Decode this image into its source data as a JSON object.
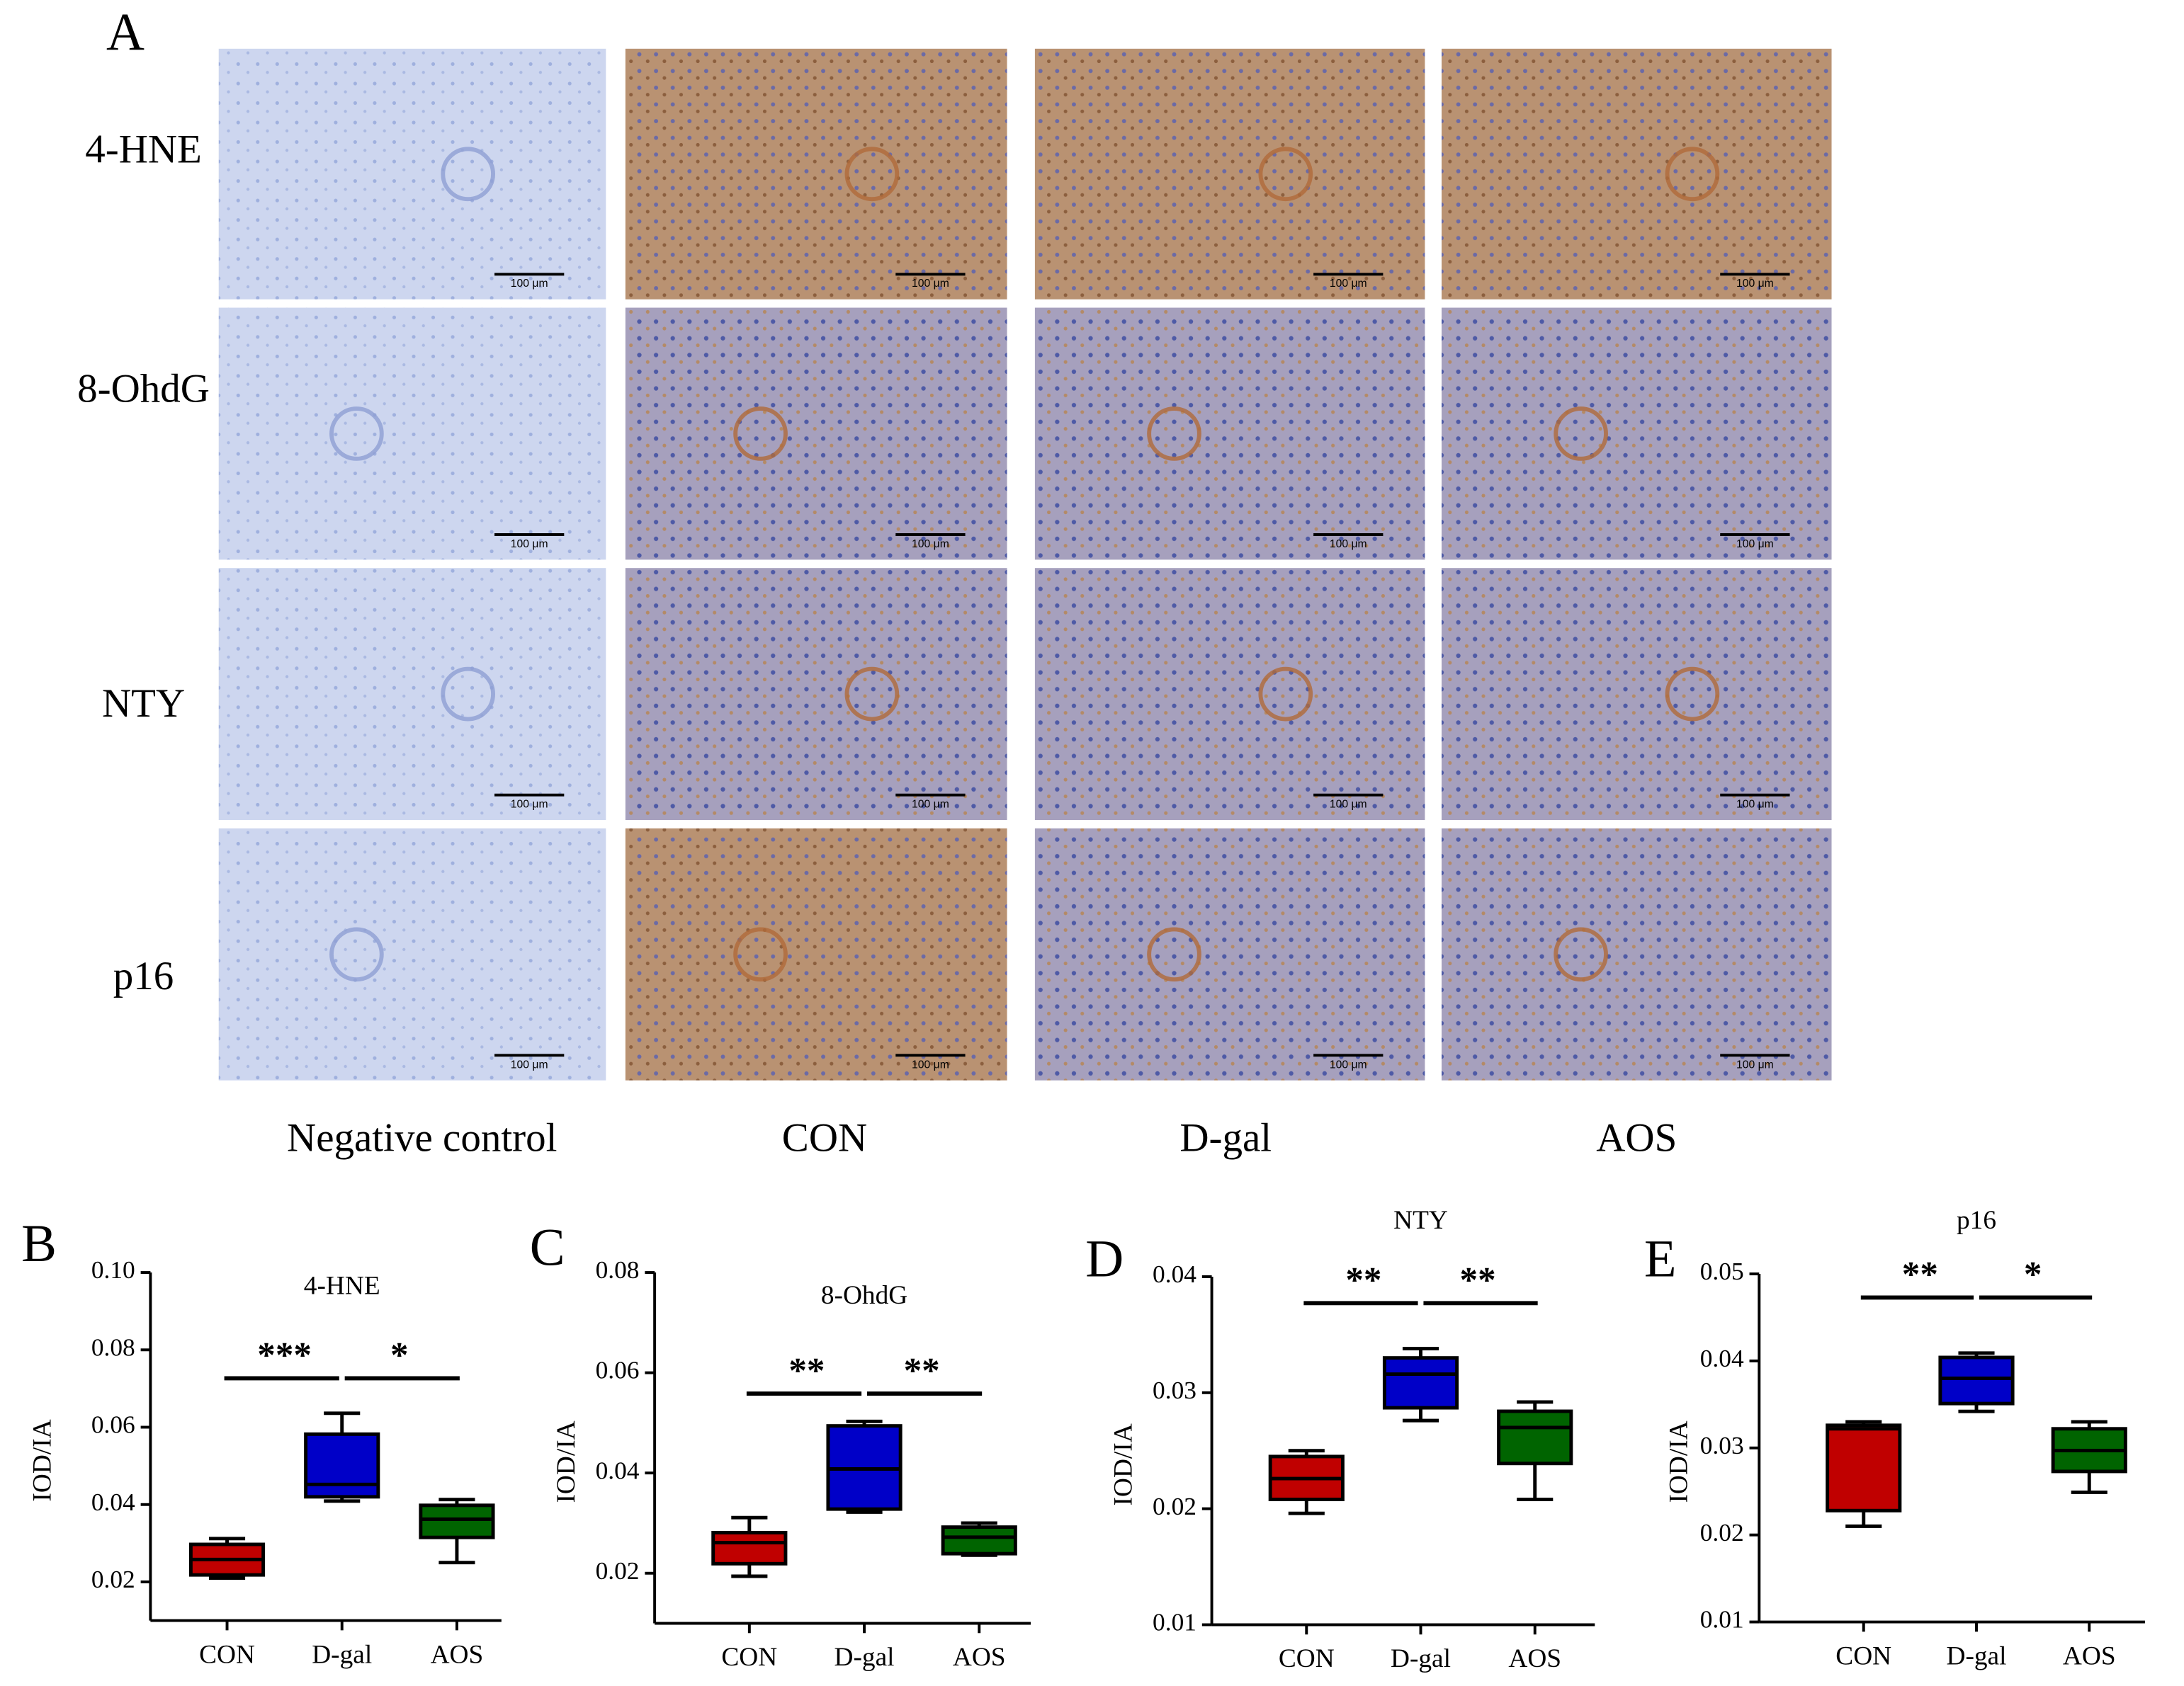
{
  "panel_a": {
    "label": "A",
    "row_labels": [
      "4-HNE",
      "8-OhdG",
      "NTY",
      "p16"
    ],
    "column_labels": [
      "Negative control",
      "CON",
      "D-gal",
      "AOS"
    ],
    "scale_bar": "100 μm"
  },
  "chart_data": [
    {
      "type": "box",
      "panel_label": "B",
      "title": "4-HNE",
      "y_label": "IOD/IA",
      "categories": [
        "CON",
        "D-gal",
        "AOS"
      ],
      "boxes": [
        {
          "min": 0.021,
          "q1": 0.0218,
          "median": 0.0258,
          "q3": 0.0297,
          "max": 0.0312,
          "color": "#c00000"
        },
        {
          "min": 0.0409,
          "q1": 0.042,
          "median": 0.0452,
          "q3": 0.0582,
          "max": 0.0636,
          "color": "#0000c8"
        },
        {
          "min": 0.025,
          "q1": 0.0315,
          "median": 0.0362,
          "q3": 0.0398,
          "max": 0.0413,
          "color": "#006400"
        }
      ],
      "annotations": [
        "***",
        "*"
      ],
      "ylim": [
        0.01,
        0.1
      ],
      "yticks": [
        0.02,
        0.04,
        0.06,
        0.08,
        {
          "value": 0.1,
          "label": "0.10"
        }
      ]
    },
    {
      "type": "box",
      "panel_label": "C",
      "title": "8-OhdG",
      "y_label": "IOD/IA",
      "categories": [
        "CON",
        "D-gal",
        "AOS"
      ],
      "boxes": [
        {
          "min": 0.0194,
          "q1": 0.0219,
          "median": 0.0261,
          "q3": 0.0281,
          "max": 0.0311,
          "color": "#c00000"
        },
        {
          "min": 0.0322,
          "q1": 0.0328,
          "median": 0.0408,
          "q3": 0.0494,
          "max": 0.0503,
          "color": "#0000c8"
        },
        {
          "min": 0.0236,
          "q1": 0.0239,
          "median": 0.0272,
          "q3": 0.0292,
          "max": 0.03,
          "color": "#006400"
        }
      ],
      "annotations": [
        "**",
        "**"
      ],
      "ylim": [
        0.01,
        0.08
      ],
      "yticks": [
        0.02,
        0.04,
        0.06,
        0.08
      ]
    },
    {
      "type": "box",
      "panel_label": "D",
      "title": "NTY",
      "y_label": "IOD/IA",
      "categories": [
        "CON",
        "D-gal",
        "AOS"
      ],
      "boxes": [
        {
          "min": 0.0196,
          "q1": 0.0208,
          "median": 0.0226,
          "q3": 0.0245,
          "max": 0.025,
          "color": "#c00000"
        },
        {
          "min": 0.0276,
          "q1": 0.0287,
          "median": 0.0316,
          "q3": 0.033,
          "max": 0.0338,
          "color": "#0000c8"
        },
        {
          "min": 0.0208,
          "q1": 0.0239,
          "median": 0.027,
          "q3": 0.0284,
          "max": 0.0292,
          "color": "#006400"
        }
      ],
      "annotations": [
        "**",
        "**"
      ],
      "ylim": [
        0.01,
        0.04
      ],
      "yticks": [
        0.01,
        0.02,
        0.03,
        0.04
      ]
    },
    {
      "type": "box",
      "panel_label": "E",
      "title": "p16",
      "y_label": "IOD/IA",
      "categories": [
        "CON",
        "D-gal",
        "AOS"
      ],
      "boxes": [
        {
          "min": 0.021,
          "q1": 0.0228,
          "median": 0.0322,
          "q3": 0.0326,
          "max": 0.033,
          "color": "#c00000"
        },
        {
          "min": 0.0342,
          "q1": 0.0351,
          "median": 0.038,
          "q3": 0.0404,
          "max": 0.0409,
          "color": "#0000c8"
        },
        {
          "min": 0.0249,
          "q1": 0.0273,
          "median": 0.0297,
          "q3": 0.0322,
          "max": 0.033,
          "color": "#006400"
        }
      ],
      "annotations": [
        "**",
        "*"
      ],
      "ylim": [
        0.01,
        0.05
      ],
      "yticks": [
        0.01,
        0.02,
        0.03,
        0.04,
        0.05
      ]
    }
  ]
}
